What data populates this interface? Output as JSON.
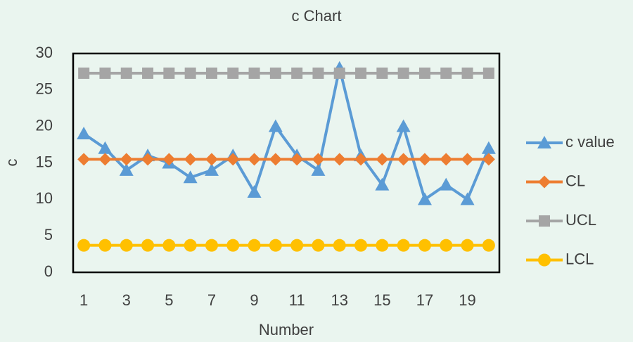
{
  "chart_data": {
    "type": "line",
    "title": "c Chart",
    "x_label": "Number",
    "y_label": "c",
    "categories": [
      1,
      null,
      3,
      null,
      5,
      null,
      7,
      null,
      9,
      null,
      11,
      null,
      13,
      null,
      15,
      null,
      17,
      null,
      19,
      null
    ],
    "series": [
      {
        "name": "c value",
        "color": "#5b9bd5",
        "marker": "triangle",
        "values": [
          19,
          17,
          14,
          16,
          15,
          13,
          14,
          16,
          11,
          20,
          16,
          14,
          28,
          16,
          12,
          20,
          10,
          12,
          10,
          17
        ]
      },
      {
        "name": "CL",
        "color": "#ed7d31",
        "marker": "diamond",
        "values": [
          15.5,
          15.5,
          15.5,
          15.5,
          15.5,
          15.5,
          15.5,
          15.5,
          15.5,
          15.5,
          15.5,
          15.5,
          15.5,
          15.5,
          15.5,
          15.5,
          15.5,
          15.5,
          15.5,
          15.5
        ]
      },
      {
        "name": "UCL",
        "color": "#a5a5a5",
        "marker": "square",
        "values": [
          27.3,
          27.3,
          27.3,
          27.3,
          27.3,
          27.3,
          27.3,
          27.3,
          27.3,
          27.3,
          27.3,
          27.3,
          27.3,
          27.3,
          27.3,
          27.3,
          27.3,
          27.3,
          27.3,
          27.3
        ]
      },
      {
        "name": "LCL",
        "color": "#ffc000",
        "marker": "circle",
        "values": [
          3.7,
          3.7,
          3.7,
          3.7,
          3.7,
          3.7,
          3.7,
          3.7,
          3.7,
          3.7,
          3.7,
          3.7,
          3.7,
          3.7,
          3.7,
          3.7,
          3.7,
          3.7,
          3.7,
          3.7
        ]
      }
    ],
    "ylim": [
      0,
      30
    ],
    "yticks": [
      0,
      5,
      10,
      15,
      20,
      25,
      30
    ],
    "grid": false,
    "legend": "right"
  }
}
